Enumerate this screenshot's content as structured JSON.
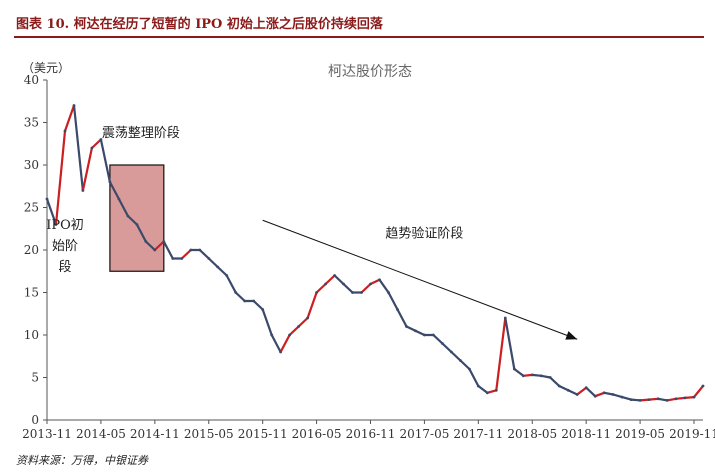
{
  "header": {
    "title": "图表 10. 柯达在经历了短暂的 IPO 初始上涨之后股价持续回落"
  },
  "source": "资料来源：万得，中银证券",
  "chart_data": {
    "type": "line",
    "title": "柯达股价形态",
    "ylabel": "（美元）",
    "ylim": [
      0,
      40
    ],
    "yticks": [
      0,
      5,
      10,
      15,
      20,
      25,
      30,
      35,
      40
    ],
    "xlim": [
      "2013-11",
      "2019-12"
    ],
    "xticks": [
      "2013-11",
      "2014-05",
      "2014-11",
      "2015-05",
      "2015-11",
      "2016-05",
      "2016-11",
      "2017-05",
      "2017-11",
      "2018-05",
      "2018-11",
      "2019-05",
      "2019-11"
    ],
    "grid": false,
    "series": [
      {
        "x": [
          "2013-11",
          "2013-12",
          "2014-01",
          "2014-02",
          "2014-03",
          "2014-04",
          "2014-05",
          "2014-06",
          "2014-07",
          "2014-08",
          "2014-09",
          "2014-10",
          "2014-11",
          "2014-12",
          "2015-01",
          "2015-02",
          "2015-03",
          "2015-04",
          "2015-05",
          "2015-06",
          "2015-07",
          "2015-08",
          "2015-09",
          "2015-10",
          "2015-11",
          "2015-12",
          "2016-01",
          "2016-02",
          "2016-03",
          "2016-04",
          "2016-05",
          "2016-06",
          "2016-07",
          "2016-08",
          "2016-09",
          "2016-10",
          "2016-11",
          "2016-12",
          "2017-01",
          "2017-02",
          "2017-03",
          "2017-04",
          "2017-05",
          "2017-06",
          "2017-07",
          "2017-08",
          "2017-09",
          "2017-10",
          "2017-11",
          "2017-12",
          "2018-01",
          "2018-02",
          "2018-03",
          "2018-04",
          "2018-05",
          "2018-06",
          "2018-07",
          "2018-08",
          "2018-09",
          "2018-10",
          "2018-11",
          "2018-12",
          "2019-01",
          "2019-02",
          "2019-03",
          "2019-04",
          "2019-05",
          "2019-06",
          "2019-07",
          "2019-08",
          "2019-09",
          "2019-10",
          "2019-11",
          "2019-12"
        ],
        "values": [
          26,
          23,
          34,
          37,
          27,
          32,
          33,
          28,
          26,
          24,
          23,
          21,
          20,
          21,
          19,
          19,
          20,
          20,
          19,
          18,
          17,
          15,
          14,
          14,
          13,
          10,
          8,
          10,
          11,
          12,
          15,
          16,
          17,
          16,
          15,
          15,
          16,
          16.5,
          15,
          13,
          11,
          10.5,
          10,
          10,
          9,
          8,
          7,
          6,
          4,
          3.2,
          3.5,
          12,
          6,
          5.2,
          5.3,
          5.2,
          5,
          4,
          3.5,
          3,
          3.8,
          2.8,
          3.2,
          3,
          2.7,
          2.4,
          2.3,
          2.4,
          2.5,
          2.3,
          2.5,
          2.6,
          2.7,
          4
        ]
      }
    ],
    "annotations": {
      "ipo": {
        "lines": [
          "IPO初",
          "始阶",
          "段"
        ]
      },
      "consolidation": {
        "label": "震荡整理阶段",
        "start": "2014-06",
        "end": "2014-12",
        "ylow": 17.5,
        "yhigh": 30
      },
      "decline": {
        "label": "趋势验证阶段",
        "from": {
          "x": "2015-11",
          "y": 23.5
        },
        "to": {
          "x": "2018-10",
          "y": 9.5
        }
      }
    },
    "colors": {
      "line": "#3b4a6b",
      "up": "#cc1f1f",
      "box_fill": "#d99a9a",
      "axis": "#555555"
    }
  }
}
